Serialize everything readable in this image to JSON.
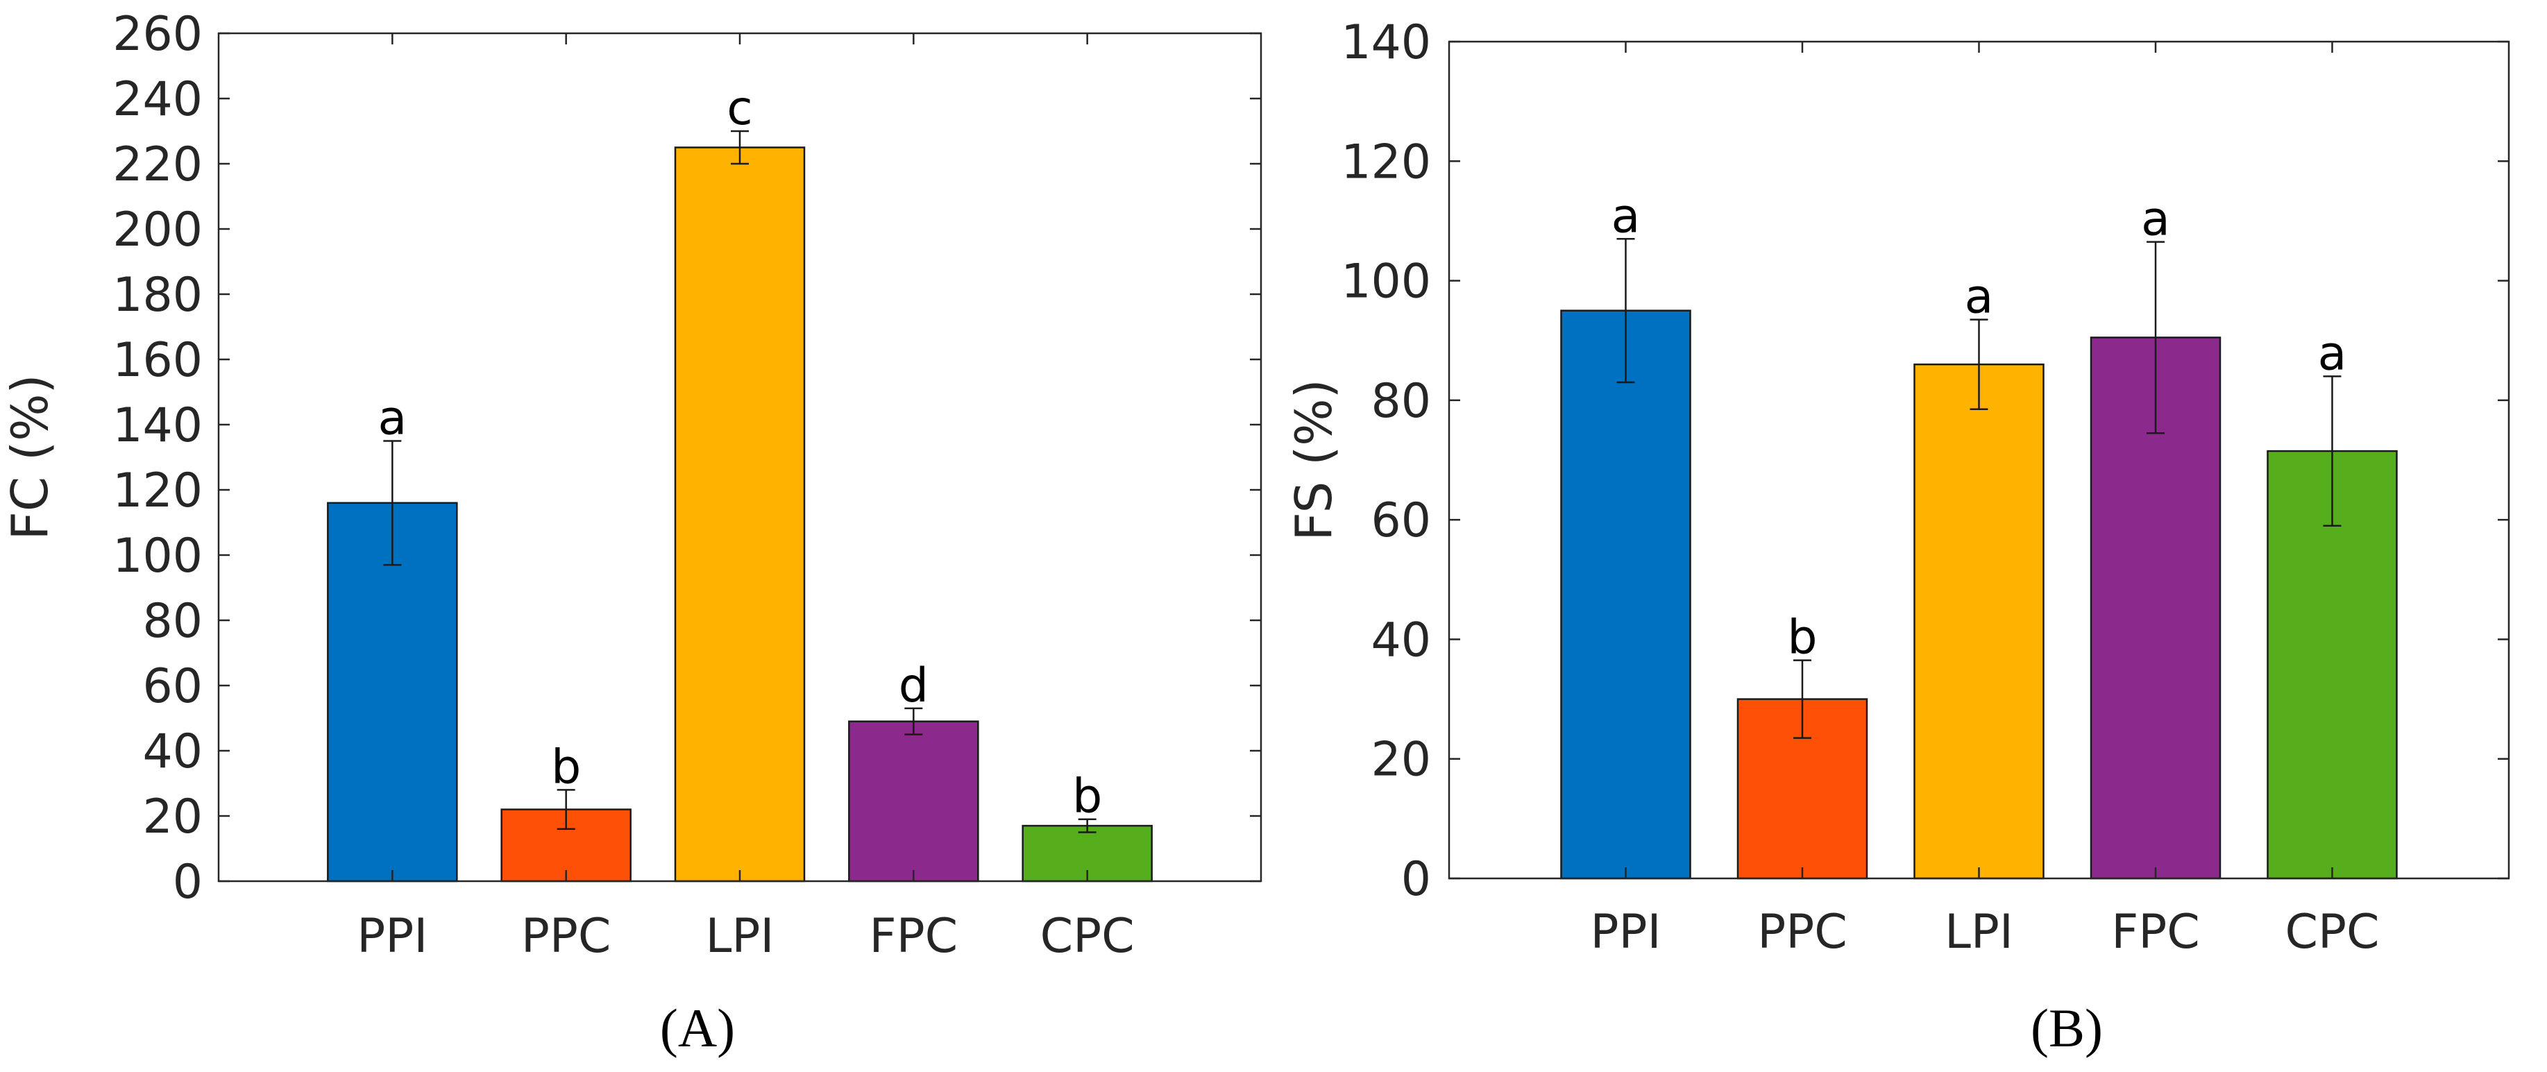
{
  "chart_data": [
    {
      "panel": "A",
      "panel_label": "(A)",
      "type": "bar",
      "ylabel": "FC (%)",
      "xlabel": "",
      "ylim": [
        0,
        260
      ],
      "yticks": [
        0,
        20,
        40,
        60,
        80,
        100,
        120,
        140,
        160,
        180,
        200,
        220,
        240,
        260
      ],
      "xlim": [
        0,
        6
      ],
      "grid": false,
      "categories": [
        "PPI",
        "PPC",
        "LPI",
        "FPC",
        "CPC"
      ],
      "values": [
        116,
        22,
        225,
        49,
        17
      ],
      "errors": [
        19,
        6,
        5,
        4,
        2
      ],
      "letters": [
        "a",
        "b",
        "c",
        "d",
        "b"
      ],
      "colors": [
        "#0070c0",
        "#ff5008",
        "#ffb200",
        "#8b2a8c",
        "#57ae1d"
      ]
    },
    {
      "panel": "B",
      "panel_label": "(B)",
      "type": "bar",
      "ylabel": "FS (%)",
      "xlabel": "",
      "ylim": [
        0,
        140
      ],
      "yticks": [
        0,
        20,
        40,
        60,
        80,
        100,
        120,
        140
      ],
      "xlim": [
        0,
        6
      ],
      "grid": false,
      "categories": [
        "PPI",
        "PPC",
        "LPI",
        "FPC",
        "CPC"
      ],
      "values": [
        95,
        30,
        86,
        90.5,
        71.5
      ],
      "errors": [
        12,
        6.5,
        7.5,
        16,
        12.5
      ],
      "letters": [
        "a",
        "b",
        "a",
        "a",
        "a"
      ],
      "colors": [
        "#0070c0",
        "#ff5008",
        "#ffb200",
        "#8b2a8c",
        "#57ae1d"
      ]
    }
  ]
}
